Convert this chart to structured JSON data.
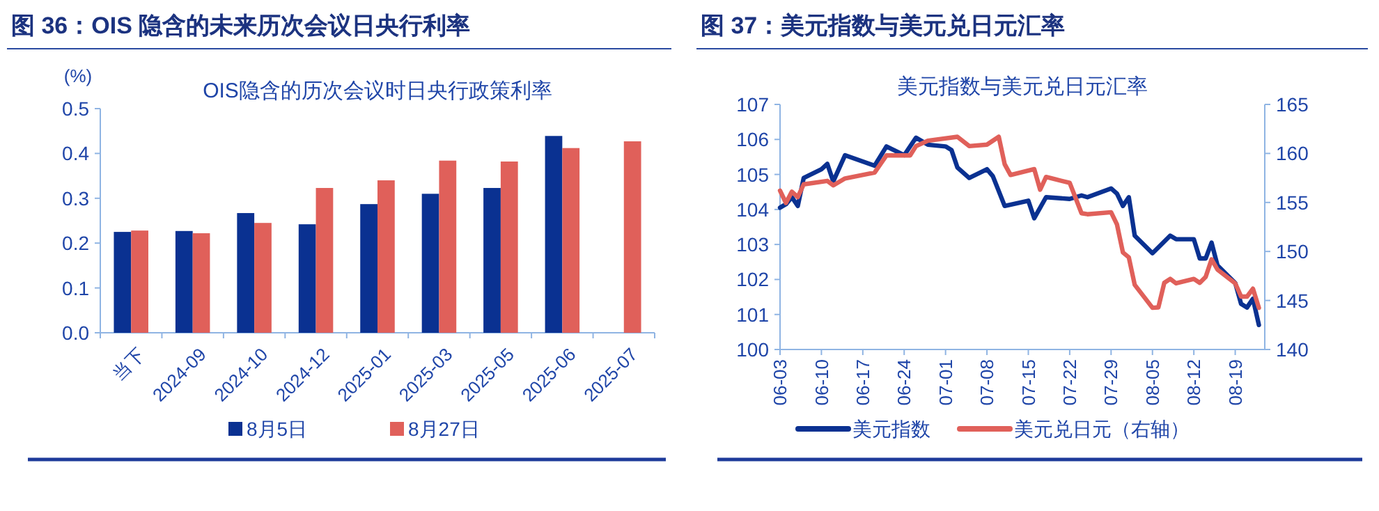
{
  "chart_data": [
    {
      "type": "bar",
      "title": "图 36：OIS 隐含的未来历次会议日央行利率",
      "subtitle": "OIS隐含的历次会议时日央行政策利率",
      "ylabel": "(%)",
      "categories": [
        "当下",
        "2024-09",
        "2024-10",
        "2024-12",
        "2025-01",
        "2025-03",
        "2025-05",
        "2025-06",
        "2025-07"
      ],
      "series": [
        {
          "name": "8月5日",
          "color": "#0a3191",
          "values": [
            0.225,
            0.227,
            0.267,
            0.242,
            0.287,
            0.31,
            0.323,
            0.439,
            null
          ]
        },
        {
          "name": "8月27日",
          "color": "#e0605a",
          "values": [
            0.228,
            0.222,
            0.245,
            0.323,
            0.34,
            0.384,
            0.382,
            0.412,
            0.427
          ]
        }
      ],
      "ylim": [
        0,
        0.5
      ],
      "yticks": [
        {
          "value": 0,
          "label": "0.0"
        },
        {
          "value": 0.1,
          "label": "0.1"
        },
        {
          "value": 0.2,
          "label": "0.2"
        },
        {
          "value": 0.3,
          "label": "0.3"
        },
        {
          "value": 0.4,
          "label": "0.4"
        },
        {
          "value": 0.5,
          "label": "0.5"
        }
      ],
      "legend": "bottom"
    },
    {
      "type": "line",
      "title": "图 37：美元指数与美元兑日元汇率",
      "subtitle": "美元指数与美元兑日元汇率",
      "xlim": [
        "--06-03",
        "--08-24"
      ],
      "xticks": [
        {
          "value": "--06-03",
          "label": "06-03"
        },
        {
          "value": "--06-10",
          "label": "06-10"
        },
        {
          "value": "--06-17",
          "label": "06-17"
        },
        {
          "value": "--06-24",
          "label": "06-24"
        },
        {
          "value": "--07-01",
          "label": "07-01"
        },
        {
          "value": "--07-08",
          "label": "07-08"
        },
        {
          "value": "--07-15",
          "label": "07-15"
        },
        {
          "value": "--07-22",
          "label": "07-22"
        },
        {
          "value": "--07-29",
          "label": "07-29"
        },
        {
          "value": "--08-05",
          "label": "08-05"
        },
        {
          "value": "--08-12",
          "label": "08-12"
        },
        {
          "value": "--08-19",
          "label": "08-19"
        }
      ],
      "ylim": [
        100,
        107
      ],
      "yticks": [
        100,
        101,
        102,
        103,
        104,
        105,
        106,
        107
      ],
      "y2lim": [
        140,
        165
      ],
      "y2ticks": [
        140,
        145,
        150,
        155,
        160,
        165
      ],
      "series": [
        {
          "name": "美元指数",
          "color": "#0a3191",
          "x": [
            "--06-03",
            "--06-04",
            "--06-05",
            "--06-06",
            "--06-07",
            "--06-10",
            "--06-11",
            "--06-12",
            "--06-14",
            "--06-19",
            "--06-21",
            "--06-24",
            "--06-26",
            "--06-28",
            "--07-01",
            "--07-02",
            "--07-03",
            "--07-05",
            "--07-08",
            "--07-09",
            "--07-11",
            "--07-15",
            "--07-16",
            "--07-18",
            "--07-22",
            "--07-24",
            "--07-25",
            "--07-29",
            "--07-30",
            "--07-31",
            "--08-01",
            "--08-02",
            "--08-05",
            "--08-08",
            "--08-09",
            "--08-12",
            "--08-13",
            "--08-14",
            "--08-15",
            "--08-16",
            "--08-19",
            "--08-20",
            "--08-21",
            "--08-22",
            "--08-23"
          ],
          "values": [
            104.05,
            104.15,
            104.35,
            104.1,
            104.9,
            105.15,
            105.3,
            104.8,
            105.55,
            105.25,
            105.8,
            105.55,
            106.05,
            105.85,
            105.8,
            105.7,
            105.2,
            104.9,
            105.15,
            104.95,
            104.1,
            104.25,
            103.75,
            104.35,
            104.3,
            104.4,
            104.35,
            104.6,
            104.45,
            104.1,
            104.35,
            103.25,
            102.75,
            103.25,
            103.15,
            103.15,
            102.6,
            102.6,
            103.05,
            102.4,
            101.9,
            101.3,
            101.2,
            101.45,
            100.7
          ]
        },
        {
          "name": "美元兑日元（右轴）",
          "color": "#e0605a",
          "axis": "y2",
          "x": [
            "--06-03",
            "--06-04",
            "--06-05",
            "--06-06",
            "--06-07",
            "--06-11",
            "--06-12",
            "--06-14",
            "--06-19",
            "--06-21",
            "--06-25",
            "--06-26",
            "--06-28",
            "--07-03",
            "--07-05",
            "--07-08",
            "--07-10",
            "--07-11",
            "--07-12",
            "--07-16",
            "--07-17",
            "--07-18",
            "--07-22",
            "--07-24",
            "--07-25",
            "--07-29",
            "--07-30",
            "--07-31",
            "--08-01",
            "--08-02",
            "--08-05",
            "--08-06",
            "--08-07",
            "--08-08",
            "--08-09",
            "--08-12",
            "--08-13",
            "--08-14",
            "--08-15",
            "--08-16",
            "--08-19",
            "--08-20",
            "--08-21",
            "--08-22",
            "--08-23"
          ],
          "values": [
            156.2,
            154.95,
            156.1,
            155.55,
            156.85,
            157.2,
            156.75,
            157.45,
            158.05,
            159.8,
            159.8,
            160.75,
            161.3,
            161.7,
            160.75,
            160.9,
            161.7,
            158.9,
            157.8,
            158.4,
            156.3,
            157.6,
            157.0,
            153.9,
            153.8,
            154.0,
            152.75,
            149.9,
            149.4,
            146.6,
            144.25,
            144.3,
            146.8,
            147.2,
            146.75,
            147.2,
            146.8,
            147.4,
            149.2,
            148.15,
            146.75,
            145.4,
            145.4,
            146.2,
            144.25
          ]
        }
      ],
      "legend": "bottom"
    }
  ]
}
